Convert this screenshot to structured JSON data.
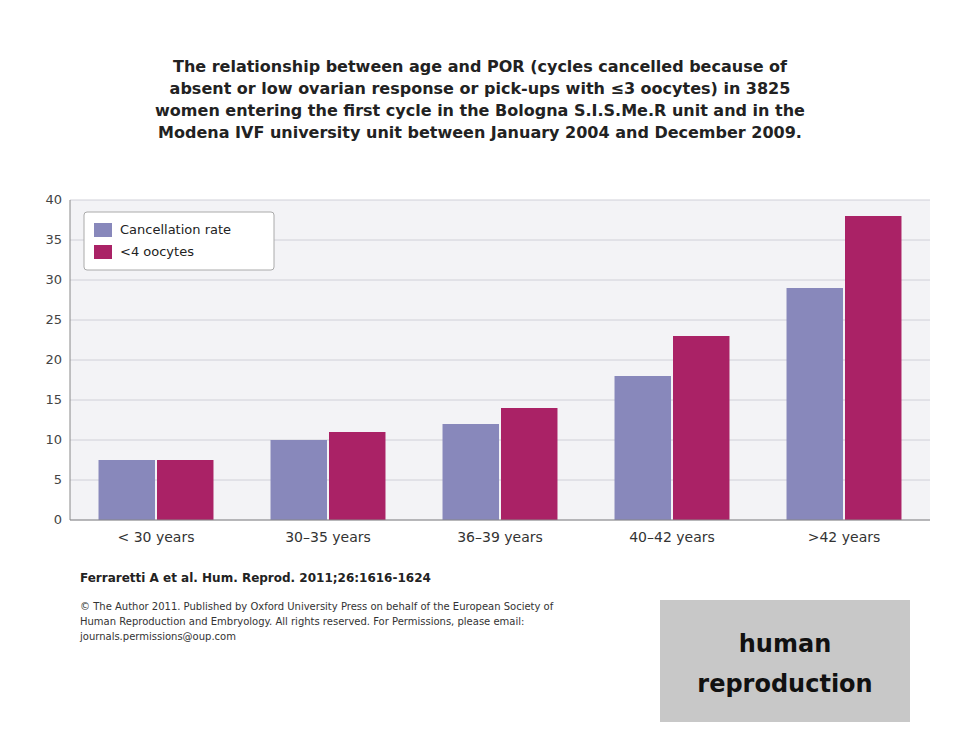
{
  "chart_data": {
    "type": "bar",
    "title": "The relationship between age and POR (cycles cancelled because of\nabsent or low ovarian response or pick-ups with ≤3 oocytes) in 3825\nwomen entering the first cycle in the Bologna S.I.S.Me.R unit and in the\nModena IVF university unit between January 2004 and December 2009.",
    "categories": [
      "< 30 years",
      "30–35 years",
      "36–39 years",
      "40–42 years",
      ">42 years"
    ],
    "series": [
      {
        "name": "Cancellation rate",
        "color": "#8888BB",
        "values": [
          7.5,
          10.0,
          12.0,
          18.0,
          29.0
        ]
      },
      {
        "name": "<4 oocytes",
        "color": "#AA2266",
        "values": [
          7.5,
          11.0,
          14.0,
          23.0,
          38.0
        ]
      }
    ],
    "ylim": [
      0,
      40
    ],
    "yticks": [
      0,
      5,
      10,
      15,
      20,
      25,
      30,
      35,
      40
    ],
    "grid": true,
    "legend": "upper left",
    "annotations": [
      "Ferraretti A et al. Hum. Reprod. 2011;26:1616-1624",
      "© The Author 2011. Published by Oxford University Press on behalf of the European Society of\nHuman Reproduction and Embryology. All rights reserved. For Permissions, please email:\njournals.permissions@oup.com",
      "human",
      "reproduction"
    ]
  }
}
